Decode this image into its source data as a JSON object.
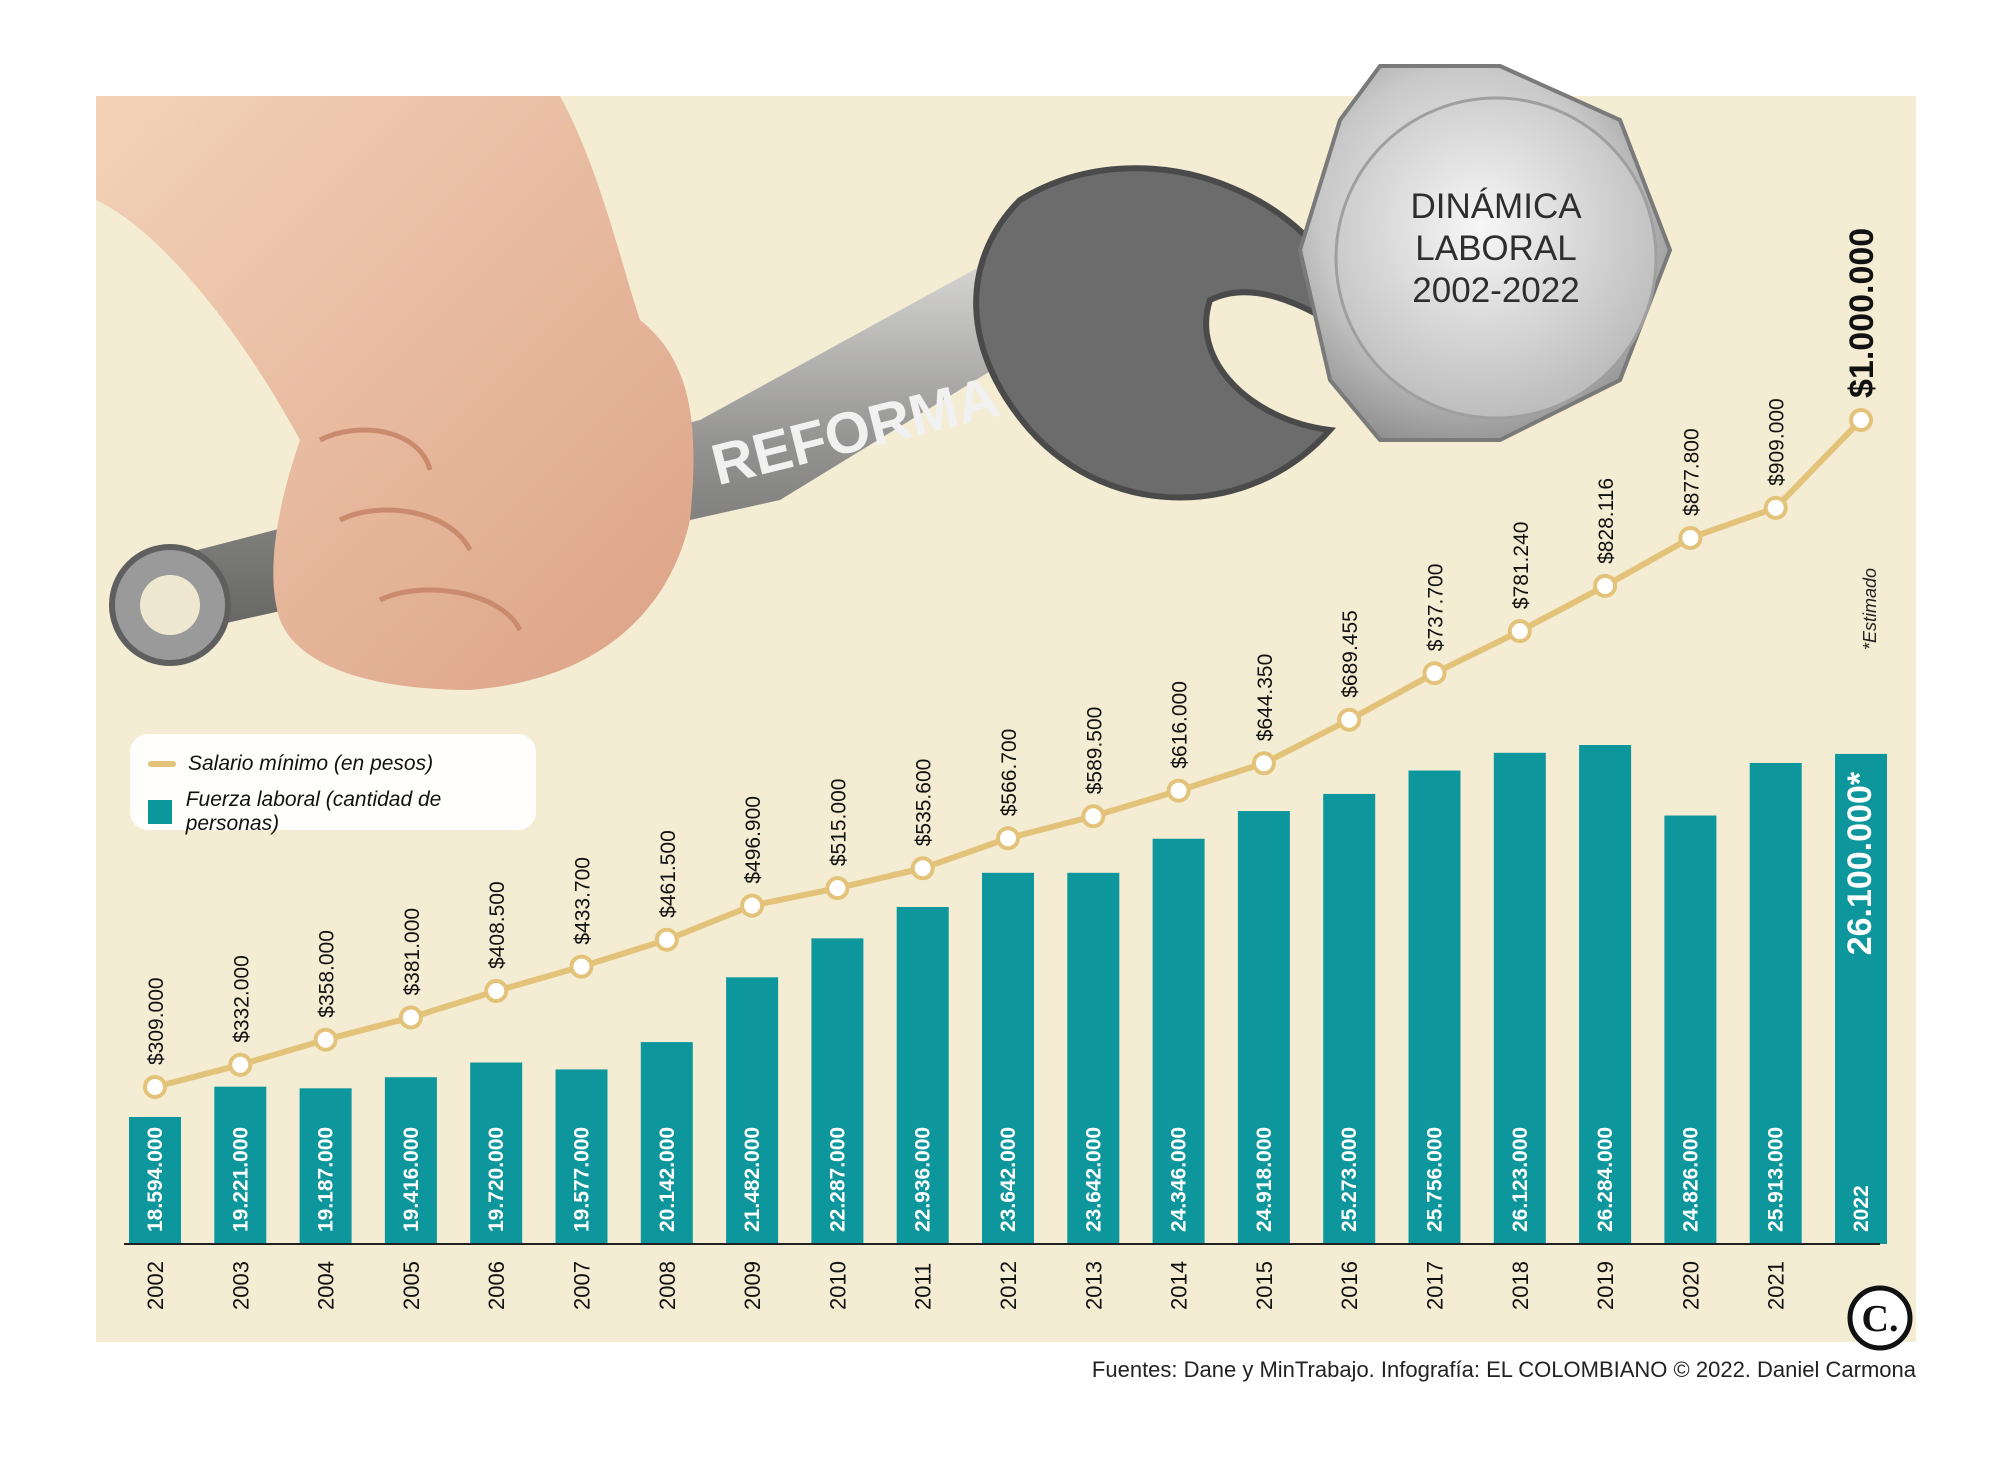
{
  "infographic": {
    "title_lines": [
      "DINÁMICA",
      "LABORAL",
      "2002-2022"
    ],
    "tool_label": "REFORMA",
    "logo_text": "C.",
    "estimate_note": "*Estimado",
    "source": "Fuentes: Dane y MinTrabajo. Infografía: EL COLOMBIANO © 2022. Daniel Carmona"
  },
  "colors": {
    "bar": "#0e969d",
    "line": "#e3c37a",
    "background": "#f4ecd3"
  },
  "legend": [
    {
      "label": "Salario mínimo (en pesos)",
      "swatch": "line"
    },
    {
      "label": "Fuerza laboral (cantidad de personas)",
      "swatch": "bar"
    }
  ],
  "chart_data": {
    "type": "bar",
    "categories": [
      "2002",
      "2003",
      "2004",
      "2005",
      "2006",
      "2007",
      "2008",
      "2009",
      "2010",
      "2011",
      "2012",
      "2013",
      "2014",
      "2015",
      "2016",
      "2017",
      "2018",
      "2019",
      "2020",
      "2021",
      "2022"
    ],
    "series": [
      {
        "name": "Fuerza laboral (cantidad de personas)",
        "type": "bar",
        "values": [
          18594000,
          19221000,
          19187000,
          19416000,
          19720000,
          19577000,
          20142000,
          21482000,
          22287000,
          22936000,
          23642000,
          23642000,
          24346000,
          24918000,
          25273000,
          25756000,
          26123000,
          26284000,
          24826000,
          25913000,
          26100000
        ],
        "labels": [
          "18.594.000",
          "19.221.000",
          "19.187.000",
          "19.416.000",
          "19.720.000",
          "19.577.000",
          "20.142.000",
          "21.482.000",
          "22.287.000",
          "22.936.000",
          "23.642.000",
          "23.642.000",
          "24.346.000",
          "24.918.000",
          "25.273.000",
          "25.756.000",
          "26.123.000",
          "26.284.000",
          "24.826.000",
          "25.913.000",
          "26.100.000*"
        ]
      },
      {
        "name": "Salario mínimo (en pesos)",
        "type": "line",
        "values": [
          309000,
          332000,
          358000,
          381000,
          408500,
          433700,
          461500,
          496900,
          515000,
          535600,
          566700,
          589500,
          616000,
          644350,
          689455,
          737700,
          781240,
          828116,
          877800,
          909000,
          1000000
        ],
        "labels": [
          "$309.000",
          "$332.000",
          "$358.000",
          "$381.000",
          "$408.500",
          "$433.700",
          "$461.500",
          "$496.900",
          "$515.000",
          "$535.600",
          "$566.700",
          "$589.500",
          "$616.000",
          "$644.350",
          "$689.455",
          "$737.700",
          "$781.240",
          "$828.116",
          "$877.800",
          "$909.000",
          "$1.000.000"
        ]
      }
    ],
    "estimated_last": true,
    "last_category_label_inside_bar": "2022"
  }
}
